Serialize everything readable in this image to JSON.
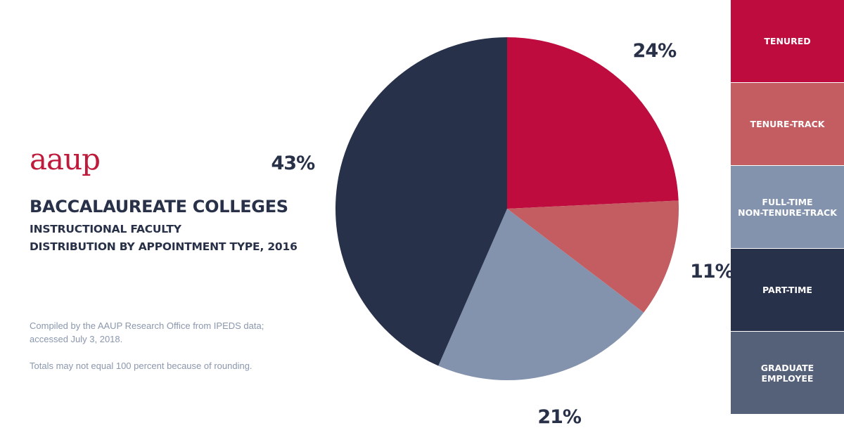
{
  "logo": "aaup",
  "title": "BACCALAUREATE COLLEGES",
  "subtitle_line1": "INSTRUCTIONAL FACULTY",
  "subtitle_line2": "DISTRIBUTION BY APPOINTMENT TYPE, 2016",
  "notes": {
    "line1": "Compiled by the AAUP Research Office from IPEDS data;",
    "line2": "accessed July 3, 2018.",
    "line3": "Totals may not equal 100 percent because of rounding."
  },
  "chart_data": {
    "type": "pie",
    "unit": "%",
    "slices": [
      {
        "name": "TENURED",
        "value": 24,
        "label": "24%",
        "color": "#be0c3e"
      },
      {
        "name": "TENURE-TRACK",
        "value": 11,
        "label": "11%",
        "color": "#c45d62"
      },
      {
        "name": "FULL-TIME NON-TENURE-TRACK",
        "value": 21,
        "label": "21%",
        "color": "#8493ad"
      },
      {
        "name": "PART-TIME",
        "value": 43,
        "label": "43%",
        "color": "#28314a"
      },
      {
        "name": "GRADUATE EMPLOYEE",
        "value": 0,
        "label": "",
        "color": "#556079"
      }
    ],
    "start": "top, clockwise",
    "legend_position": "right"
  },
  "legend": [
    {
      "label": "TENURED",
      "color": "#be0c3e"
    },
    {
      "label": "TENURE-TRACK",
      "color": "#c45d62"
    },
    {
      "label": "FULL-TIME\nNON-TENURE-TRACK",
      "color": "#8493ad"
    },
    {
      "label": "PART-TIME",
      "color": "#28314a"
    },
    {
      "label": "GRADUATE\nEMPLOYEE",
      "color": "#556079"
    }
  ]
}
